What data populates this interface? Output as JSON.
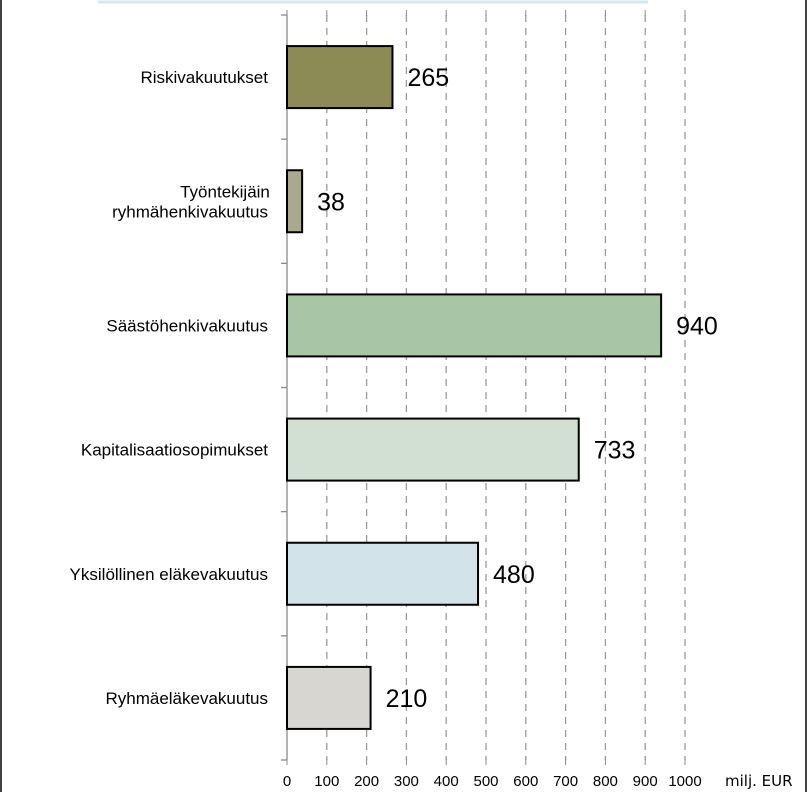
{
  "chart_data": {
    "type": "bar",
    "orientation": "horizontal",
    "categories": [
      "Riskivakuutukset",
      "Työntekijäin ryhmähenkivakuutus",
      "Säästöhenkivakuutus",
      "Kapitalisaatiosopimukset",
      "Yksilöllinen eläkevakuutus",
      "Ryhmäeläkevakuutus"
    ],
    "category_lines": [
      [
        "Riskivakuutukset"
      ],
      [
        "Työntekijäin",
        "ryhmähenkivakuutus"
      ],
      [
        "Säästöhenkivakuutus"
      ],
      [
        "Kapitalisaatiosopimukset"
      ],
      [
        "Yksilöllinen eläkevakuutus"
      ],
      [
        "Ryhmäeläkevakuutus"
      ]
    ],
    "values": [
      265,
      38,
      940,
      733,
      480,
      210
    ],
    "value_labels": [
      "265",
      "38",
      "940",
      "733",
      "480",
      "210"
    ],
    "bar_colors": [
      "#8d8b55",
      "#a9a98e",
      "#a8c5a5",
      "#d1e0d2",
      "#d2e3ea",
      "#d8d6d0"
    ],
    "xlim": [
      0,
      1000
    ],
    "xticks": [
      0,
      100,
      200,
      300,
      400,
      500,
      600,
      700,
      800,
      900,
      1000
    ],
    "xtick_labels": [
      "0",
      "100",
      "200",
      "300",
      "400",
      "500",
      "600",
      "700",
      "800",
      "900",
      "1000"
    ],
    "xlabel": "milj. EUR",
    "title": "",
    "grid": "vertical dashed",
    "legend": "none"
  }
}
